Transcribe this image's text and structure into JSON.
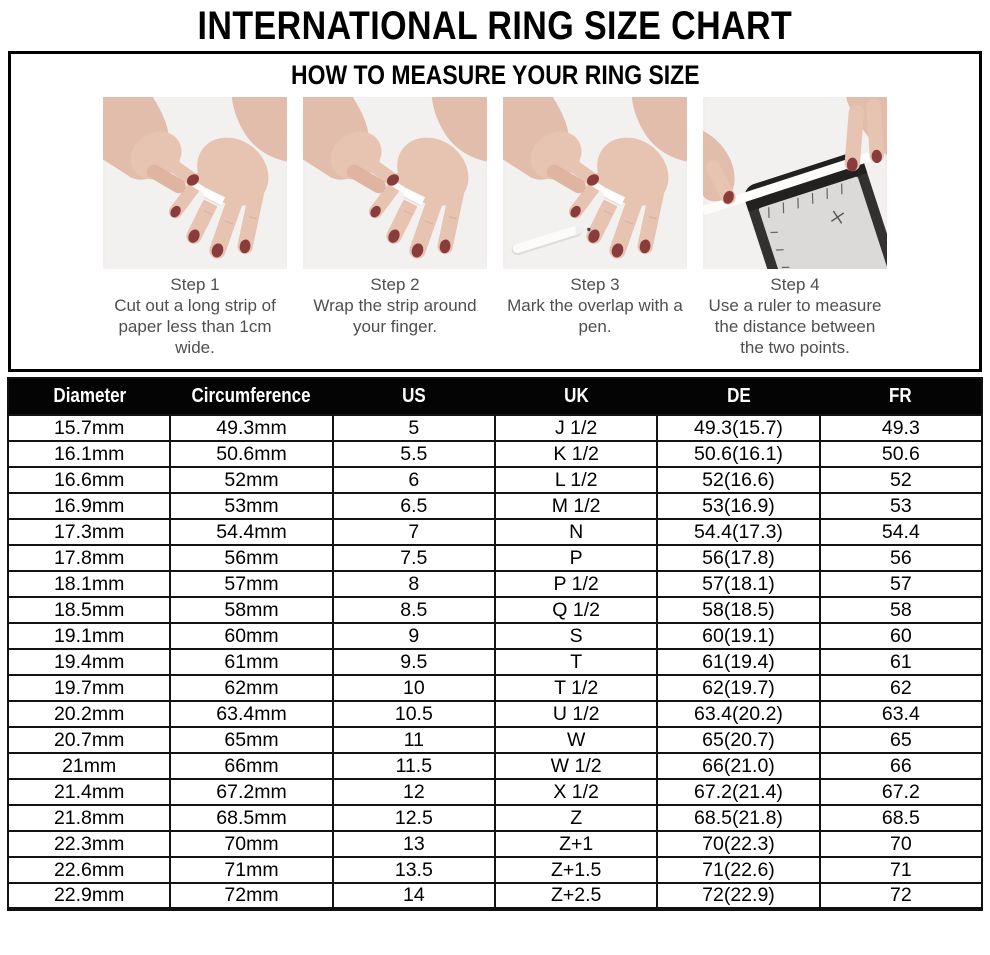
{
  "title": "INTERNATIONAL RING SIZE CHART",
  "howto": {
    "title": "HOW TO MEASURE YOUR RING SIZE",
    "steps": [
      {
        "label": "Step 1",
        "description": "Cut out a long strip of paper less than 1cm wide.",
        "image": "hands-cutting-paper-strip"
      },
      {
        "label": "Step 2",
        "description": "Wrap the strip around your finger.",
        "image": "hands-wrapping-strip"
      },
      {
        "label": "Step 3",
        "description": "Mark the overlap with a pen.",
        "image": "hands-marking-with-pen"
      },
      {
        "label": "Step 4",
        "description": "Use a ruler to measure the distance between the two points.",
        "image": "hands-measuring-with-ruler"
      }
    ]
  },
  "table": {
    "columns": [
      "Diameter",
      "Circumference",
      "US",
      "UK",
      "DE",
      "FR"
    ],
    "rows": [
      [
        "15.7mm",
        "49.3mm",
        "5",
        "J 1/2",
        "49.3(15.7)",
        "49.3"
      ],
      [
        "16.1mm",
        "50.6mm",
        "5.5",
        "K 1/2",
        "50.6(16.1)",
        "50.6"
      ],
      [
        "16.6mm",
        "52mm",
        "6",
        "L 1/2",
        "52(16.6)",
        "52"
      ],
      [
        "16.9mm",
        "53mm",
        "6.5",
        "M 1/2",
        "53(16.9)",
        "53"
      ],
      [
        "17.3mm",
        "54.4mm",
        "7",
        "N",
        "54.4(17.3)",
        "54.4"
      ],
      [
        "17.8mm",
        "56mm",
        "7.5",
        "P",
        "56(17.8)",
        "56"
      ],
      [
        "18.1mm",
        "57mm",
        "8",
        "P 1/2",
        "57(18.1)",
        "57"
      ],
      [
        "18.5mm",
        "58mm",
        "8.5",
        "Q 1/2",
        "58(18.5)",
        "58"
      ],
      [
        "19.1mm",
        "60mm",
        "9",
        "S",
        "60(19.1)",
        "60"
      ],
      [
        "19.4mm",
        "61mm",
        "9.5",
        "T",
        "61(19.4)",
        "61"
      ],
      [
        "19.7mm",
        "62mm",
        "10",
        "T 1/2",
        "62(19.7)",
        "62"
      ],
      [
        "20.2mm",
        "63.4mm",
        "10.5",
        "U 1/2",
        "63.4(20.2)",
        "63.4"
      ],
      [
        "20.7mm",
        "65mm",
        "11",
        "W",
        "65(20.7)",
        "65"
      ],
      [
        "21mm",
        "66mm",
        "11.5",
        "W 1/2",
        "66(21.0)",
        "66"
      ],
      [
        "21.4mm",
        "67.2mm",
        "12",
        "X 1/2",
        "67.2(21.4)",
        "67.2"
      ],
      [
        "21.8mm",
        "68.5mm",
        "12.5",
        "Z",
        "68.5(21.8)",
        "68.5"
      ],
      [
        "22.3mm",
        "70mm",
        "13",
        "Z+1",
        "70(22.3)",
        "70"
      ],
      [
        "22.6mm",
        "71mm",
        "13.5",
        "Z+1.5",
        "71(22.6)",
        "71"
      ],
      [
        "22.9mm",
        "72mm",
        "14",
        "Z+2.5",
        "72(22.9)",
        "72"
      ]
    ]
  },
  "colors": {
    "header_bg": "#040404",
    "header_text": "#ffffff",
    "border": "#131313",
    "caption_text": "#4f4f4f",
    "photo_bg": "#f1efee",
    "skin": "#e7c3b1",
    "nail_polish": "#8a3c3c",
    "ring_band": "#ffffff"
  }
}
